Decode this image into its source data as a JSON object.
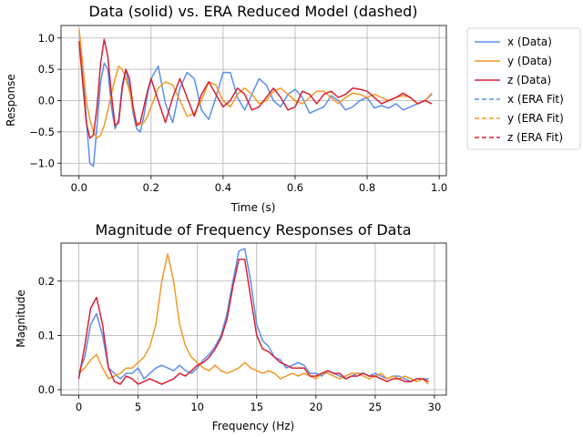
{
  "colors": {
    "x": "#5b8ff0",
    "y": "#f29a26",
    "z": "#d62132"
  },
  "chart_data": [
    {
      "type": "line",
      "title": "Data (solid) vs. ERA Reduced Model (dashed)",
      "xlabel": "Time (s)",
      "ylabel": "Response",
      "xlim": [
        -0.05,
        1.02
      ],
      "ylim": [
        -1.2,
        1.2
      ],
      "xticks": [
        0.0,
        0.2,
        0.4,
        0.6,
        0.8,
        1.0
      ],
      "xtick_labels": [
        "0.0",
        "0.2",
        "0.4",
        "0.6",
        "0.8",
        "1.0"
      ],
      "yticks": [
        -1.0,
        -0.5,
        0.0,
        0.5,
        1.0
      ],
      "ytick_labels": [
        "−1.0",
        "−0.5",
        "0.0",
        "0.5",
        "1.0"
      ],
      "grid": true,
      "legend_position": "outside-right",
      "legend": [
        "x (Data)",
        "y (Data)",
        "z (Data)",
        "x (ERA Fit)",
        "y (ERA Fit)",
        "z (ERA Fit)"
      ],
      "series": [
        {
          "name": "x (Data)",
          "color_key": "x",
          "style": "solid",
          "x": [
            0.0,
            0.01,
            0.02,
            0.03,
            0.04,
            0.05,
            0.06,
            0.07,
            0.08,
            0.09,
            0.1,
            0.11,
            0.12,
            0.13,
            0.14,
            0.15,
            0.16,
            0.17,
            0.18,
            0.19,
            0.2,
            0.22,
            0.24,
            0.26,
            0.28,
            0.3,
            0.32,
            0.34,
            0.36,
            0.38,
            0.4,
            0.42,
            0.44,
            0.46,
            0.48,
            0.5,
            0.52,
            0.54,
            0.56,
            0.58,
            0.6,
            0.62,
            0.64,
            0.66,
            0.68,
            0.7,
            0.72,
            0.74,
            0.76,
            0.78,
            0.8,
            0.82,
            0.84,
            0.86,
            0.88,
            0.9,
            0.92,
            0.94,
            0.96,
            0.98
          ],
          "y": [
            0.95,
            0.55,
            -0.3,
            -1.0,
            -1.05,
            -0.4,
            0.3,
            0.6,
            0.5,
            -0.1,
            -0.45,
            -0.3,
            0.25,
            0.5,
            0.2,
            -0.2,
            -0.45,
            -0.5,
            -0.25,
            0.1,
            0.35,
            0.55,
            -0.05,
            -0.35,
            0.2,
            0.45,
            0.35,
            -0.15,
            -0.3,
            0.05,
            0.45,
            0.45,
            0.05,
            -0.15,
            0.1,
            0.35,
            0.25,
            0.0,
            -0.1,
            0.1,
            0.18,
            0.05,
            -0.2,
            -0.15,
            -0.1,
            0.08,
            0.0,
            -0.15,
            -0.1,
            0.0,
            0.05,
            -0.12,
            -0.08,
            -0.12,
            -0.05,
            -0.15,
            -0.1,
            -0.05,
            0.0,
            0.1
          ]
        },
        {
          "name": "y (Data)",
          "color_key": "y",
          "style": "solid",
          "x": [
            0.0,
            0.01,
            0.02,
            0.03,
            0.04,
            0.05,
            0.06,
            0.07,
            0.08,
            0.09,
            0.1,
            0.11,
            0.12,
            0.13,
            0.14,
            0.15,
            0.16,
            0.17,
            0.18,
            0.19,
            0.2,
            0.22,
            0.24,
            0.26,
            0.28,
            0.3,
            0.32,
            0.34,
            0.36,
            0.38,
            0.4,
            0.42,
            0.44,
            0.46,
            0.48,
            0.5,
            0.52,
            0.54,
            0.56,
            0.58,
            0.6,
            0.62,
            0.64,
            0.66,
            0.68,
            0.7,
            0.72,
            0.74,
            0.76,
            0.78,
            0.8,
            0.82,
            0.84,
            0.86,
            0.88,
            0.9,
            0.92,
            0.94,
            0.96,
            0.98
          ],
          "y": [
            1.15,
            0.6,
            0.0,
            -0.3,
            -0.5,
            -0.6,
            -0.55,
            -0.4,
            -0.15,
            0.1,
            0.35,
            0.55,
            0.5,
            0.35,
            0.15,
            -0.15,
            -0.35,
            -0.38,
            -0.35,
            -0.25,
            -0.1,
            0.2,
            0.3,
            0.25,
            0.0,
            -0.25,
            -0.2,
            0.0,
            0.3,
            0.25,
            0.0,
            -0.1,
            0.1,
            0.2,
            0.1,
            -0.05,
            0.0,
            0.15,
            0.2,
            0.1,
            0.0,
            -0.05,
            0.05,
            0.15,
            0.15,
            0.05,
            -0.05,
            0.05,
            0.12,
            0.1,
            0.05,
            0.1,
            0.05,
            0.0,
            0.05,
            0.08,
            0.05,
            -0.05,
            0.0,
            0.12
          ]
        },
        {
          "name": "z (Data)",
          "color_key": "z",
          "style": "solid",
          "x": [
            0.0,
            0.01,
            0.02,
            0.03,
            0.04,
            0.05,
            0.06,
            0.07,
            0.08,
            0.09,
            0.1,
            0.11,
            0.12,
            0.13,
            0.14,
            0.15,
            0.16,
            0.17,
            0.18,
            0.19,
            0.2,
            0.22,
            0.24,
            0.26,
            0.28,
            0.3,
            0.32,
            0.34,
            0.36,
            0.38,
            0.4,
            0.42,
            0.44,
            0.46,
            0.48,
            0.5,
            0.52,
            0.54,
            0.56,
            0.58,
            0.6,
            0.62,
            0.64,
            0.66,
            0.68,
            0.7,
            0.72,
            0.74,
            0.76,
            0.78,
            0.8,
            0.82,
            0.84,
            0.86,
            0.88,
            0.9,
            0.92,
            0.94,
            0.96,
            0.98
          ],
          "y": [
            0.95,
            0.3,
            -0.35,
            -0.6,
            -0.55,
            -0.1,
            0.6,
            0.98,
            0.7,
            0.1,
            -0.4,
            -0.35,
            0.2,
            0.5,
            0.35,
            -0.1,
            -0.4,
            -0.35,
            -0.1,
            0.15,
            0.35,
            0.0,
            -0.35,
            0.05,
            0.35,
            0.05,
            -0.25,
            0.1,
            0.3,
            0.1,
            -0.1,
            0.0,
            0.2,
            0.1,
            -0.15,
            -0.1,
            0.05,
            0.2,
            0.05,
            -0.15,
            -0.1,
            0.15,
            0.1,
            -0.05,
            0.1,
            0.15,
            0.05,
            0.1,
            0.2,
            0.18,
            0.15,
            0.05,
            -0.05,
            0.0,
            0.05,
            0.12,
            0.05,
            -0.05,
            0.0,
            -0.05
          ]
        },
        {
          "name": "x (ERA Fit)",
          "color_key": "x",
          "style": "dashed",
          "x": [],
          "y": []
        },
        {
          "name": "y (ERA Fit)",
          "color_key": "y",
          "style": "dashed",
          "x": [],
          "y": []
        },
        {
          "name": "z (ERA Fit)",
          "color_key": "z",
          "style": "dashed",
          "x": [],
          "y": []
        }
      ]
    },
    {
      "type": "line",
      "title": "Magnitude of Frequency Responses of Data",
      "xlabel": "Frequency (Hz)",
      "ylabel": "Magnitude",
      "xlim": [
        -1.5,
        31.0
      ],
      "ylim": [
        -0.01,
        0.27
      ],
      "xticks": [
        0,
        5,
        10,
        15,
        20,
        25,
        30
      ],
      "xtick_labels": [
        "0",
        "5",
        "10",
        "15",
        "20",
        "25",
        "30"
      ],
      "yticks": [
        0.0,
        0.1,
        0.2
      ],
      "ytick_labels": [
        "0.0",
        "0.1",
        "0.2"
      ],
      "grid": true,
      "series": [
        {
          "name": "x",
          "color_key": "x",
          "style": "solid",
          "x": [
            0,
            0.5,
            1,
            1.5,
            2,
            2.5,
            3,
            3.5,
            4,
            4.5,
            5,
            5.5,
            6,
            6.5,
            7,
            7.5,
            8,
            8.5,
            9,
            9.5,
            10,
            10.5,
            11,
            11.5,
            12,
            12.5,
            13,
            13.5,
            14,
            14.5,
            15,
            15.5,
            16,
            16.5,
            17,
            17.5,
            18,
            18.5,
            19,
            19.5,
            20,
            20.5,
            21,
            21.5,
            22,
            22.5,
            23,
            23.5,
            24,
            24.5,
            25,
            25.5,
            26,
            26.5,
            27,
            27.5,
            28,
            28.5,
            29,
            29.5
          ],
          "y": [
            0.03,
            0.06,
            0.12,
            0.14,
            0.1,
            0.04,
            0.03,
            0.02,
            0.03,
            0.03,
            0.04,
            0.02,
            0.03,
            0.04,
            0.045,
            0.04,
            0.035,
            0.045,
            0.035,
            0.03,
            0.04,
            0.055,
            0.065,
            0.08,
            0.1,
            0.14,
            0.2,
            0.255,
            0.26,
            0.2,
            0.12,
            0.09,
            0.08,
            0.06,
            0.055,
            0.04,
            0.045,
            0.05,
            0.045,
            0.03,
            0.03,
            0.025,
            0.035,
            0.03,
            0.025,
            0.02,
            0.025,
            0.03,
            0.03,
            0.025,
            0.03,
            0.025,
            0.02,
            0.025,
            0.025,
            0.02,
            0.015,
            0.02,
            0.02,
            0.02
          ]
        },
        {
          "name": "y",
          "color_key": "y",
          "style": "solid",
          "x": [
            0,
            0.5,
            1,
            1.5,
            2,
            2.5,
            3,
            3.5,
            4,
            4.5,
            5,
            5.5,
            6,
            6.5,
            7,
            7.5,
            8,
            8.5,
            9,
            9.5,
            10,
            10.5,
            11,
            11.5,
            12,
            12.5,
            13,
            13.5,
            14,
            14.5,
            15,
            15.5,
            16,
            16.5,
            17,
            17.5,
            18,
            18.5,
            19,
            19.5,
            20,
            20.5,
            21,
            21.5,
            22,
            22.5,
            23,
            23.5,
            24,
            24.5,
            25,
            25.5,
            26,
            26.5,
            27,
            27.5,
            28,
            28.5,
            29,
            29.5
          ],
          "y": [
            0.03,
            0.04,
            0.055,
            0.065,
            0.04,
            0.02,
            0.025,
            0.03,
            0.04,
            0.04,
            0.05,
            0.06,
            0.08,
            0.12,
            0.2,
            0.25,
            0.2,
            0.12,
            0.08,
            0.06,
            0.05,
            0.04,
            0.035,
            0.045,
            0.035,
            0.03,
            0.035,
            0.04,
            0.05,
            0.04,
            0.035,
            0.03,
            0.035,
            0.03,
            0.02,
            0.025,
            0.03,
            0.025,
            0.03,
            0.025,
            0.02,
            0.03,
            0.03,
            0.025,
            0.02,
            0.025,
            0.03,
            0.03,
            0.025,
            0.02,
            0.025,
            0.03,
            0.02,
            0.025,
            0.02,
            0.025,
            0.02,
            0.015,
            0.02,
            0.01
          ]
        },
        {
          "name": "z",
          "color_key": "z",
          "style": "solid",
          "x": [
            0,
            0.5,
            1,
            1.5,
            2,
            2.5,
            3,
            3.5,
            4,
            4.5,
            5,
            5.5,
            6,
            6.5,
            7,
            7.5,
            8,
            8.5,
            9,
            9.5,
            10,
            10.5,
            11,
            11.5,
            12,
            12.5,
            13,
            13.5,
            14,
            14.5,
            15,
            15.5,
            16,
            16.5,
            17,
            17.5,
            18,
            18.5,
            19,
            19.5,
            20,
            20.5,
            21,
            21.5,
            22,
            22.5,
            23,
            23.5,
            24,
            24.5,
            25,
            25.5,
            26,
            26.5,
            27,
            27.5,
            28,
            28.5,
            29,
            29.5
          ],
          "y": [
            0.02,
            0.08,
            0.15,
            0.17,
            0.12,
            0.04,
            0.015,
            0.01,
            0.025,
            0.02,
            0.01,
            0.015,
            0.02,
            0.015,
            0.01,
            0.015,
            0.02,
            0.03,
            0.025,
            0.035,
            0.045,
            0.05,
            0.06,
            0.075,
            0.095,
            0.13,
            0.19,
            0.24,
            0.24,
            0.17,
            0.1,
            0.075,
            0.07,
            0.06,
            0.05,
            0.045,
            0.04,
            0.04,
            0.04,
            0.025,
            0.025,
            0.03,
            0.035,
            0.03,
            0.03,
            0.02,
            0.025,
            0.025,
            0.03,
            0.025,
            0.025,
            0.02,
            0.015,
            0.02,
            0.02,
            0.015,
            0.015,
            0.02,
            0.02,
            0.015
          ]
        }
      ]
    }
  ]
}
